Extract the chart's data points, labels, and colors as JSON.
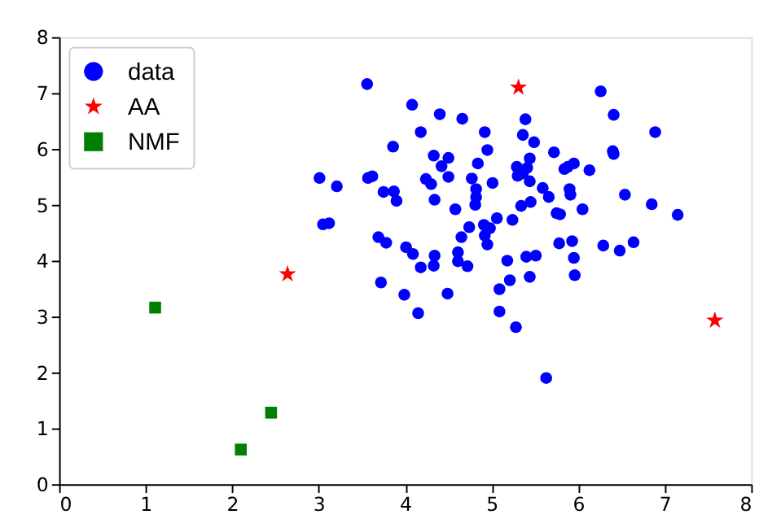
{
  "chart_data": {
    "type": "scatter",
    "xlim": [
      0,
      8
    ],
    "ylim": [
      0,
      8
    ],
    "xticks": [
      0,
      1,
      2,
      3,
      4,
      5,
      6,
      7,
      8
    ],
    "yticks": [
      0,
      1,
      2,
      3,
      4,
      5,
      6,
      7,
      8
    ],
    "grid": false,
    "legend": "top left",
    "series": [
      {
        "name": "data",
        "color": "#0000ff",
        "marker": "circle",
        "x": [
          3.56,
          6.26,
          4.08,
          4.4,
          4.66,
          6.41,
          5.39,
          4.18,
          4.92,
          6.89,
          5.36,
          3.86,
          4.95,
          5.49,
          5.72,
          6.4,
          6.41,
          4.33,
          4.5,
          5.44,
          4.84,
          5.95,
          4.42,
          5.84,
          5.88,
          5.41,
          5.29,
          6.13,
          3.01,
          3.57,
          3.62,
          3.21,
          4.24,
          4.3,
          4.5,
          4.77,
          5.3,
          5.36,
          5.44,
          5.01,
          5.59,
          3.75,
          3.87,
          4.82,
          4.82,
          5.9,
          5.91,
          3.9,
          4.34,
          4.81,
          5.66,
          6.54,
          6.85,
          5.45,
          5.34,
          4.58,
          6.05,
          5.75,
          5.79,
          7.15,
          5.06,
          5.24,
          3.05,
          3.12,
          4.91,
          4.98,
          4.74,
          4.65,
          4.92,
          3.69,
          3.78,
          4.95,
          5.78,
          5.93,
          6.29,
          6.64,
          6.48,
          4.01,
          4.09,
          4.61,
          4.61,
          4.34,
          4.33,
          4.18,
          4.72,
          5.18,
          5.4,
          5.51,
          5.95,
          5.96,
          5.44,
          3.72,
          5.21,
          5.09,
          3.99,
          4.49,
          4.15,
          5.09,
          5.28,
          5.63
        ],
        "values": [
          7.16,
          7.03,
          6.79,
          6.62,
          6.54,
          6.61,
          6.53,
          6.3,
          6.3,
          6.3,
          6.25,
          6.04,
          5.98,
          6.12,
          5.94,
          5.96,
          5.91,
          5.88,
          5.84,
          5.83,
          5.74,
          5.74,
          5.69,
          5.64,
          5.68,
          5.66,
          5.68,
          5.62,
          5.48,
          5.48,
          5.51,
          5.33,
          5.46,
          5.37,
          5.5,
          5.47,
          5.52,
          5.56,
          5.42,
          5.39,
          5.3,
          5.23,
          5.24,
          5.28,
          5.14,
          5.28,
          5.18,
          5.07,
          5.09,
          5.0,
          5.14,
          5.18,
          5.01,
          5.05,
          4.98,
          4.92,
          4.92,
          4.85,
          4.83,
          4.82,
          4.76,
          4.73,
          4.65,
          4.67,
          4.64,
          4.58,
          4.6,
          4.42,
          4.45,
          4.42,
          4.32,
          4.29,
          4.31,
          4.35,
          4.27,
          4.33,
          4.18,
          4.24,
          4.12,
          4.15,
          3.99,
          4.09,
          3.91,
          3.88,
          3.9,
          4.0,
          4.07,
          4.09,
          4.05,
          3.74,
          3.71,
          3.61,
          3.65,
          3.49,
          3.39,
          3.41,
          3.06,
          3.09,
          2.81,
          1.9
        ]
      },
      {
        "name": "AA",
        "color": "#ff0000",
        "marker": "star",
        "x": [
          5.31,
          2.64,
          7.58
        ],
        "values": [
          7.1,
          3.76,
          2.93
        ]
      },
      {
        "name": "NMF",
        "color": "#008000",
        "marker": "square",
        "x": [
          1.11,
          2.45,
          2.1
        ],
        "values": [
          3.16,
          1.28,
          0.62
        ]
      }
    ]
  }
}
